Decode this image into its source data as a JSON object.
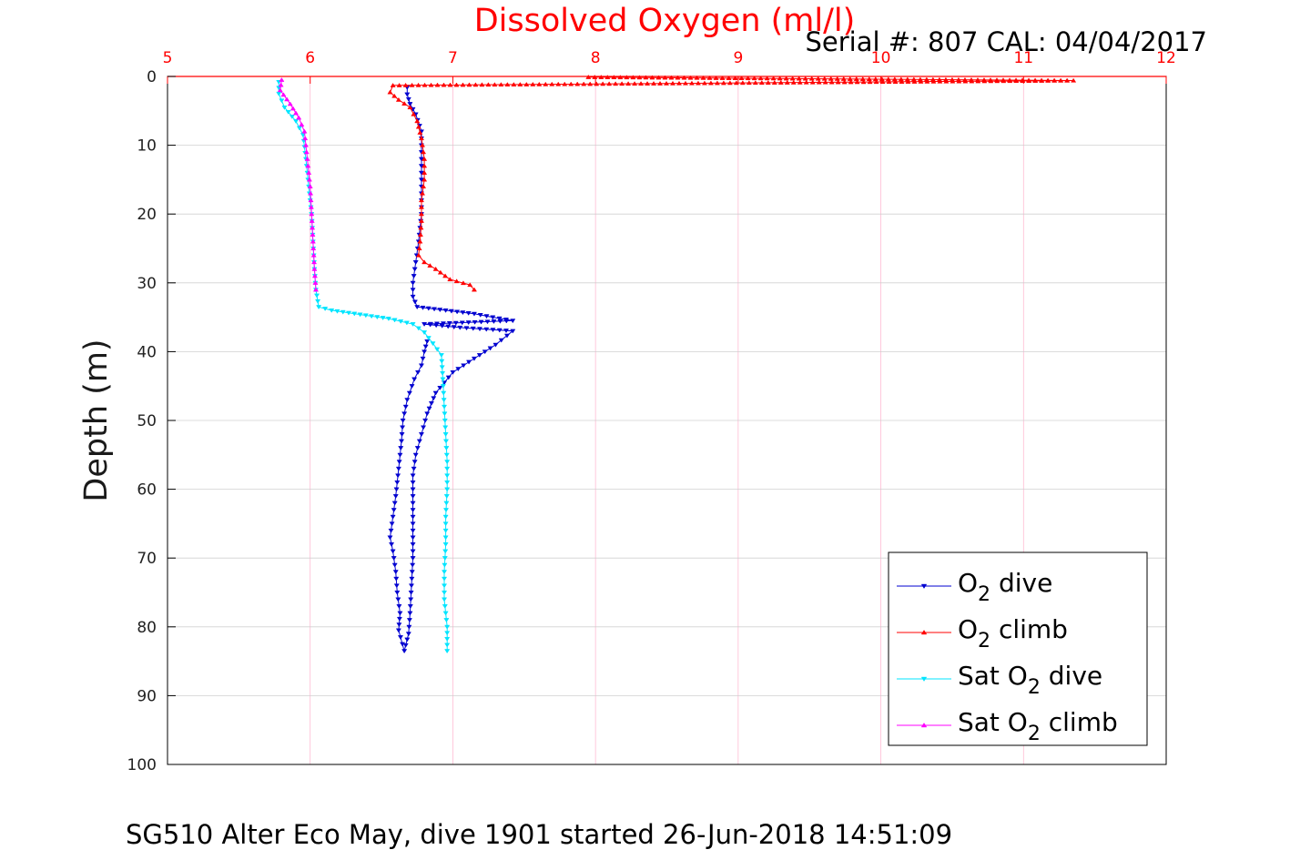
{
  "chart_data": {
    "type": "line",
    "title": "Dissolved Oxygen (ml/l)",
    "serial_text": "Serial #: 807  CAL: 04/04/2017",
    "ylabel": "Depth (m)",
    "caption": "SG510 Alter Eco May, dive 1901 started 26-Jun-2018 14:51:09",
    "xlim": [
      5,
      12
    ],
    "ylim": [
      0,
      100
    ],
    "y_reversed": true,
    "x_ticks": [
      "5",
      "6",
      "7",
      "8",
      "9",
      "10",
      "11",
      "12"
    ],
    "y_ticks": [
      "0",
      "10",
      "20",
      "30",
      "40",
      "50",
      "60",
      "70",
      "80",
      "90",
      "100"
    ],
    "x_axis_position": "top",
    "grid": true,
    "legend_position": "bottom-right",
    "colors": {
      "title": "#ff0000",
      "x_axis": "#ff0000",
      "grid": "#ff9ec0",
      "frame": "#000000"
    },
    "series": [
      {
        "name": "O2 dive",
        "label_main": "O",
        "label_sub": "2",
        "label_rest": " dive",
        "color": "#0000d0",
        "marker": "triangle-down",
        "points": [
          [
            6.68,
            1.6
          ],
          [
            6.68,
            2.6
          ],
          [
            6.7,
            4.0
          ],
          [
            6.74,
            5.5
          ],
          [
            6.78,
            8
          ],
          [
            6.78,
            12
          ],
          [
            6.78,
            16
          ],
          [
            6.78,
            20
          ],
          [
            6.76,
            24
          ],
          [
            6.74,
            27
          ],
          [
            6.72,
            30
          ],
          [
            6.72,
            32
          ],
          [
            6.75,
            33.5
          ],
          [
            6.95,
            34.0
          ],
          [
            7.15,
            34.5
          ],
          [
            7.28,
            35.0
          ],
          [
            7.42,
            35.5
          ],
          [
            6.8,
            36.0
          ],
          [
            7.05,
            36.5
          ],
          [
            7.42,
            37.0
          ],
          [
            7.3,
            39.0
          ],
          [
            7.15,
            41.0
          ],
          [
            7.0,
            43.0
          ],
          [
            6.88,
            46
          ],
          [
            6.82,
            49
          ],
          [
            6.78,
            52
          ],
          [
            6.74,
            55
          ],
          [
            6.72,
            58
          ],
          [
            6.72,
            62
          ],
          [
            6.72,
            66
          ],
          [
            6.72,
            70
          ],
          [
            6.71,
            74
          ],
          [
            6.7,
            78
          ],
          [
            6.69,
            81
          ],
          [
            6.66,
            83.5
          ],
          [
            6.62,
            80.5
          ],
          [
            6.63,
            78
          ],
          [
            6.61,
            75
          ],
          [
            6.6,
            72
          ],
          [
            6.58,
            69
          ],
          [
            6.56,
            67
          ],
          [
            6.58,
            64
          ],
          [
            6.6,
            61
          ],
          [
            6.62,
            57
          ],
          [
            6.64,
            53
          ],
          [
            6.65,
            50
          ],
          [
            6.68,
            47
          ],
          [
            6.73,
            44
          ],
          [
            6.78,
            42
          ],
          [
            6.8,
            40
          ],
          [
            6.82,
            38.5
          ]
        ]
      },
      {
        "name": "O2 climb",
        "label_main": "O",
        "label_sub": "2",
        "label_rest": " climb",
        "color": "#ff0000",
        "marker": "triangle-up",
        "points": [
          [
            7.95,
            0.1
          ],
          [
            11.35,
            0.6
          ],
          [
            6.58,
            1.3
          ],
          [
            6.56,
            2.3
          ],
          [
            6.62,
            3.4
          ],
          [
            6.7,
            4.5
          ],
          [
            6.75,
            6.5
          ],
          [
            6.78,
            9
          ],
          [
            6.8,
            12
          ],
          [
            6.8,
            15
          ],
          [
            6.78,
            18
          ],
          [
            6.78,
            21
          ],
          [
            6.77,
            24
          ],
          [
            6.76,
            26
          ],
          [
            6.8,
            27
          ],
          [
            6.88,
            28
          ],
          [
            6.98,
            29.5
          ],
          [
            7.12,
            30.3
          ],
          [
            7.15,
            31.0
          ]
        ]
      },
      {
        "name": "Sat O2 dive",
        "label_main": "Sat O",
        "label_sub": "2",
        "label_rest": " dive",
        "color": "#00e5ff",
        "marker": "triangle-down",
        "points": [
          [
            5.78,
            0.8
          ],
          [
            5.78,
            2.5
          ],
          [
            5.82,
            4.5
          ],
          [
            5.9,
            6.5
          ],
          [
            5.95,
            8.5
          ],
          [
            5.97,
            12
          ],
          [
            5.99,
            16
          ],
          [
            6.01,
            20
          ],
          [
            6.02,
            24
          ],
          [
            6.03,
            28
          ],
          [
            6.04,
            31
          ],
          [
            6.06,
            33.5
          ],
          [
            6.15,
            34.0
          ],
          [
            6.35,
            34.6
          ],
          [
            6.55,
            35.2
          ],
          [
            6.72,
            36.0
          ],
          [
            6.8,
            37.2
          ],
          [
            6.86,
            38.8
          ],
          [
            6.92,
            40.5
          ],
          [
            6.93,
            44
          ],
          [
            6.94,
            48
          ],
          [
            6.95,
            52
          ],
          [
            6.96,
            56
          ],
          [
            6.96,
            60
          ],
          [
            6.95,
            64
          ],
          [
            6.95,
            68
          ],
          [
            6.94,
            72
          ],
          [
            6.94,
            76
          ],
          [
            6.96,
            80
          ],
          [
            6.96,
            83.5
          ]
        ]
      },
      {
        "name": "Sat O2 climb",
        "label_main": "Sat O",
        "label_sub": "2",
        "label_rest": " climb",
        "color": "#ff00ff",
        "marker": "triangle-up",
        "points": [
          [
            5.8,
            0.5
          ],
          [
            5.79,
            2.0
          ],
          [
            5.86,
            4.0
          ],
          [
            5.92,
            6.0
          ],
          [
            5.96,
            8.0
          ],
          [
            5.98,
            12
          ],
          [
            6.0,
            16
          ],
          [
            6.01,
            20
          ],
          [
            6.02,
            24
          ],
          [
            6.03,
            28
          ],
          [
            6.04,
            31
          ]
        ]
      }
    ]
  }
}
